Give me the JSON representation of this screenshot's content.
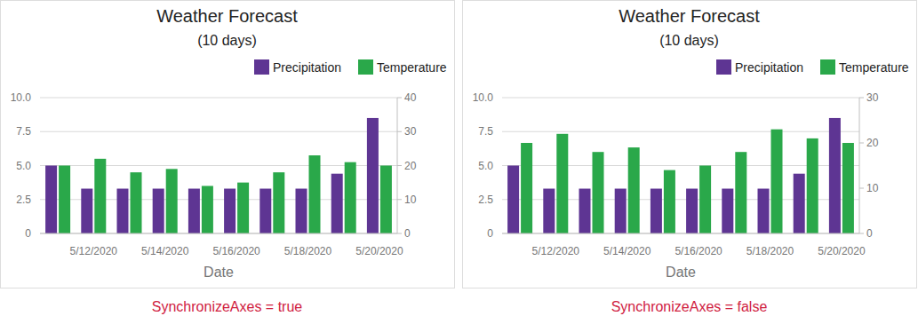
{
  "chart_data": [
    {
      "type": "bar",
      "title": "Weather Forecast",
      "subtitle": "(10 days)",
      "xlabel": "Date",
      "caption": "SynchronizeAxes = true",
      "categories": [
        null,
        "5/12/2020",
        null,
        "5/14/2020",
        null,
        "5/16/2020",
        null,
        "5/18/2020",
        null,
        "5/20/2020"
      ],
      "series": [
        {
          "name": "Precipitation",
          "color": "#5e3593",
          "axis": "y",
          "values": [
            5.0,
            3.3,
            3.3,
            3.3,
            3.3,
            3.3,
            3.3,
            3.3,
            4.4,
            8.5
          ]
        },
        {
          "name": "Temperature",
          "color": "#2aa84a",
          "axis": "y2",
          "values": [
            20,
            22,
            18,
            19,
            14,
            15,
            18,
            23,
            21,
            20
          ]
        }
      ],
      "ylim": [
        0,
        10
      ],
      "yticks": [
        0,
        2.5,
        {
          "value": 5,
          "label": "5.0"
        },
        7.5,
        {
          "value": 10,
          "label": "10.0"
        }
      ],
      "y2lim": [
        0,
        40
      ],
      "y2ticks": [
        0,
        10,
        20,
        30,
        40
      ],
      "grid": true,
      "legend": "top-right"
    },
    {
      "type": "bar",
      "title": "Weather Forecast",
      "subtitle": "(10 days)",
      "xlabel": "Date",
      "caption": "SynchronizeAxes = false",
      "categories": [
        null,
        "5/12/2020",
        null,
        "5/14/2020",
        null,
        "5/16/2020",
        null,
        "5/18/2020",
        null,
        "5/20/2020"
      ],
      "series": [
        {
          "name": "Precipitation",
          "color": "#5e3593",
          "axis": "y",
          "values": [
            5.0,
            3.3,
            3.3,
            3.3,
            3.3,
            3.3,
            3.3,
            3.3,
            4.4,
            8.5
          ]
        },
        {
          "name": "Temperature",
          "color": "#2aa84a",
          "axis": "y2",
          "values": [
            20,
            22,
            18,
            19,
            14,
            15,
            18,
            23,
            21,
            20
          ]
        }
      ],
      "ylim": [
        0,
        10
      ],
      "yticks": [
        0,
        2.5,
        {
          "value": 5,
          "label": "5.0"
        },
        7.5,
        {
          "value": 10,
          "label": "10.0"
        }
      ],
      "y2lim": [
        0,
        30
      ],
      "y2ticks": [
        0,
        10,
        20,
        30
      ],
      "grid": true,
      "legend": "top-right"
    }
  ]
}
